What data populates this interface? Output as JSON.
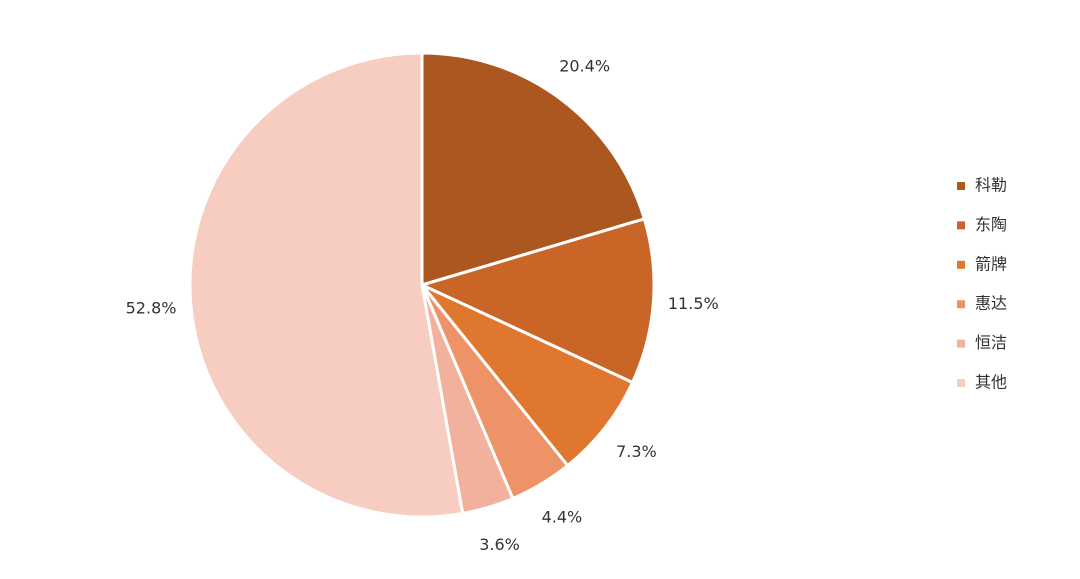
{
  "chart_data": {
    "type": "pie",
    "categories": [
      "科勒",
      "东陶",
      "箭牌",
      "惠达",
      "恒洁",
      "其他"
    ],
    "values": [
      20.4,
      11.5,
      7.3,
      4.4,
      3.6,
      52.8
    ],
    "value_labels": [
      "20.4%",
      "11.5%",
      "7.3%",
      "4.4%",
      "3.6%",
      "52.8%"
    ],
    "colors": [
      "#ad5720",
      "#c96627",
      "#e0772f",
      "#ee9268",
      "#f2b19c",
      "#f6cdc0"
    ],
    "legend": "right"
  }
}
